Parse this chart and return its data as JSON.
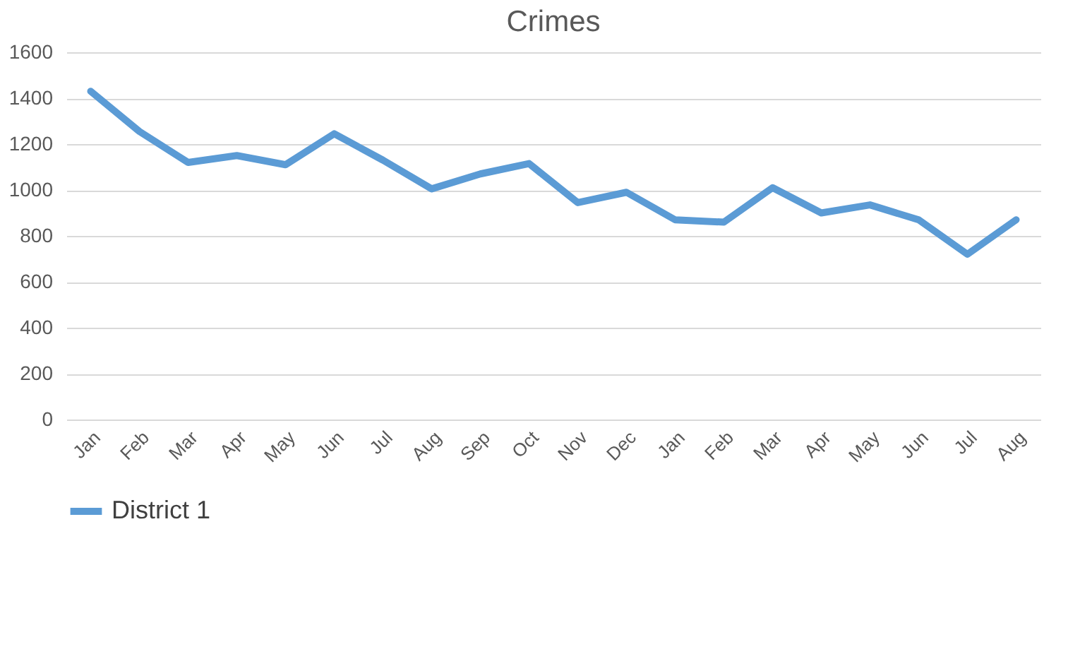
{
  "chart_data": {
    "type": "line",
    "title": "Crimes",
    "categories": [
      "Jan",
      "Feb",
      "Mar",
      "Apr",
      "May",
      "Jun",
      "Jul",
      "Aug",
      "Sep",
      "Oct",
      "Nov",
      "Dec",
      "Jan",
      "Feb",
      "Mar",
      "Apr",
      "May",
      "Jun",
      "Jul",
      "Aug"
    ],
    "series": [
      {
        "name": "District 1",
        "color": "#5b9bd5",
        "values": [
          1430,
          1255,
          1120,
          1150,
          1110,
          1245,
          1130,
          1005,
          1070,
          1115,
          945,
          990,
          870,
          860,
          1010,
          900,
          935,
          870,
          720,
          870
        ]
      }
    ],
    "ylim": [
      0,
      1600
    ],
    "yticks": [
      0,
      200,
      400,
      600,
      800,
      1000,
      1200,
      1400,
      1600
    ],
    "grid": "y",
    "legend": "bottom",
    "marker": "none",
    "line_style": "solid"
  }
}
